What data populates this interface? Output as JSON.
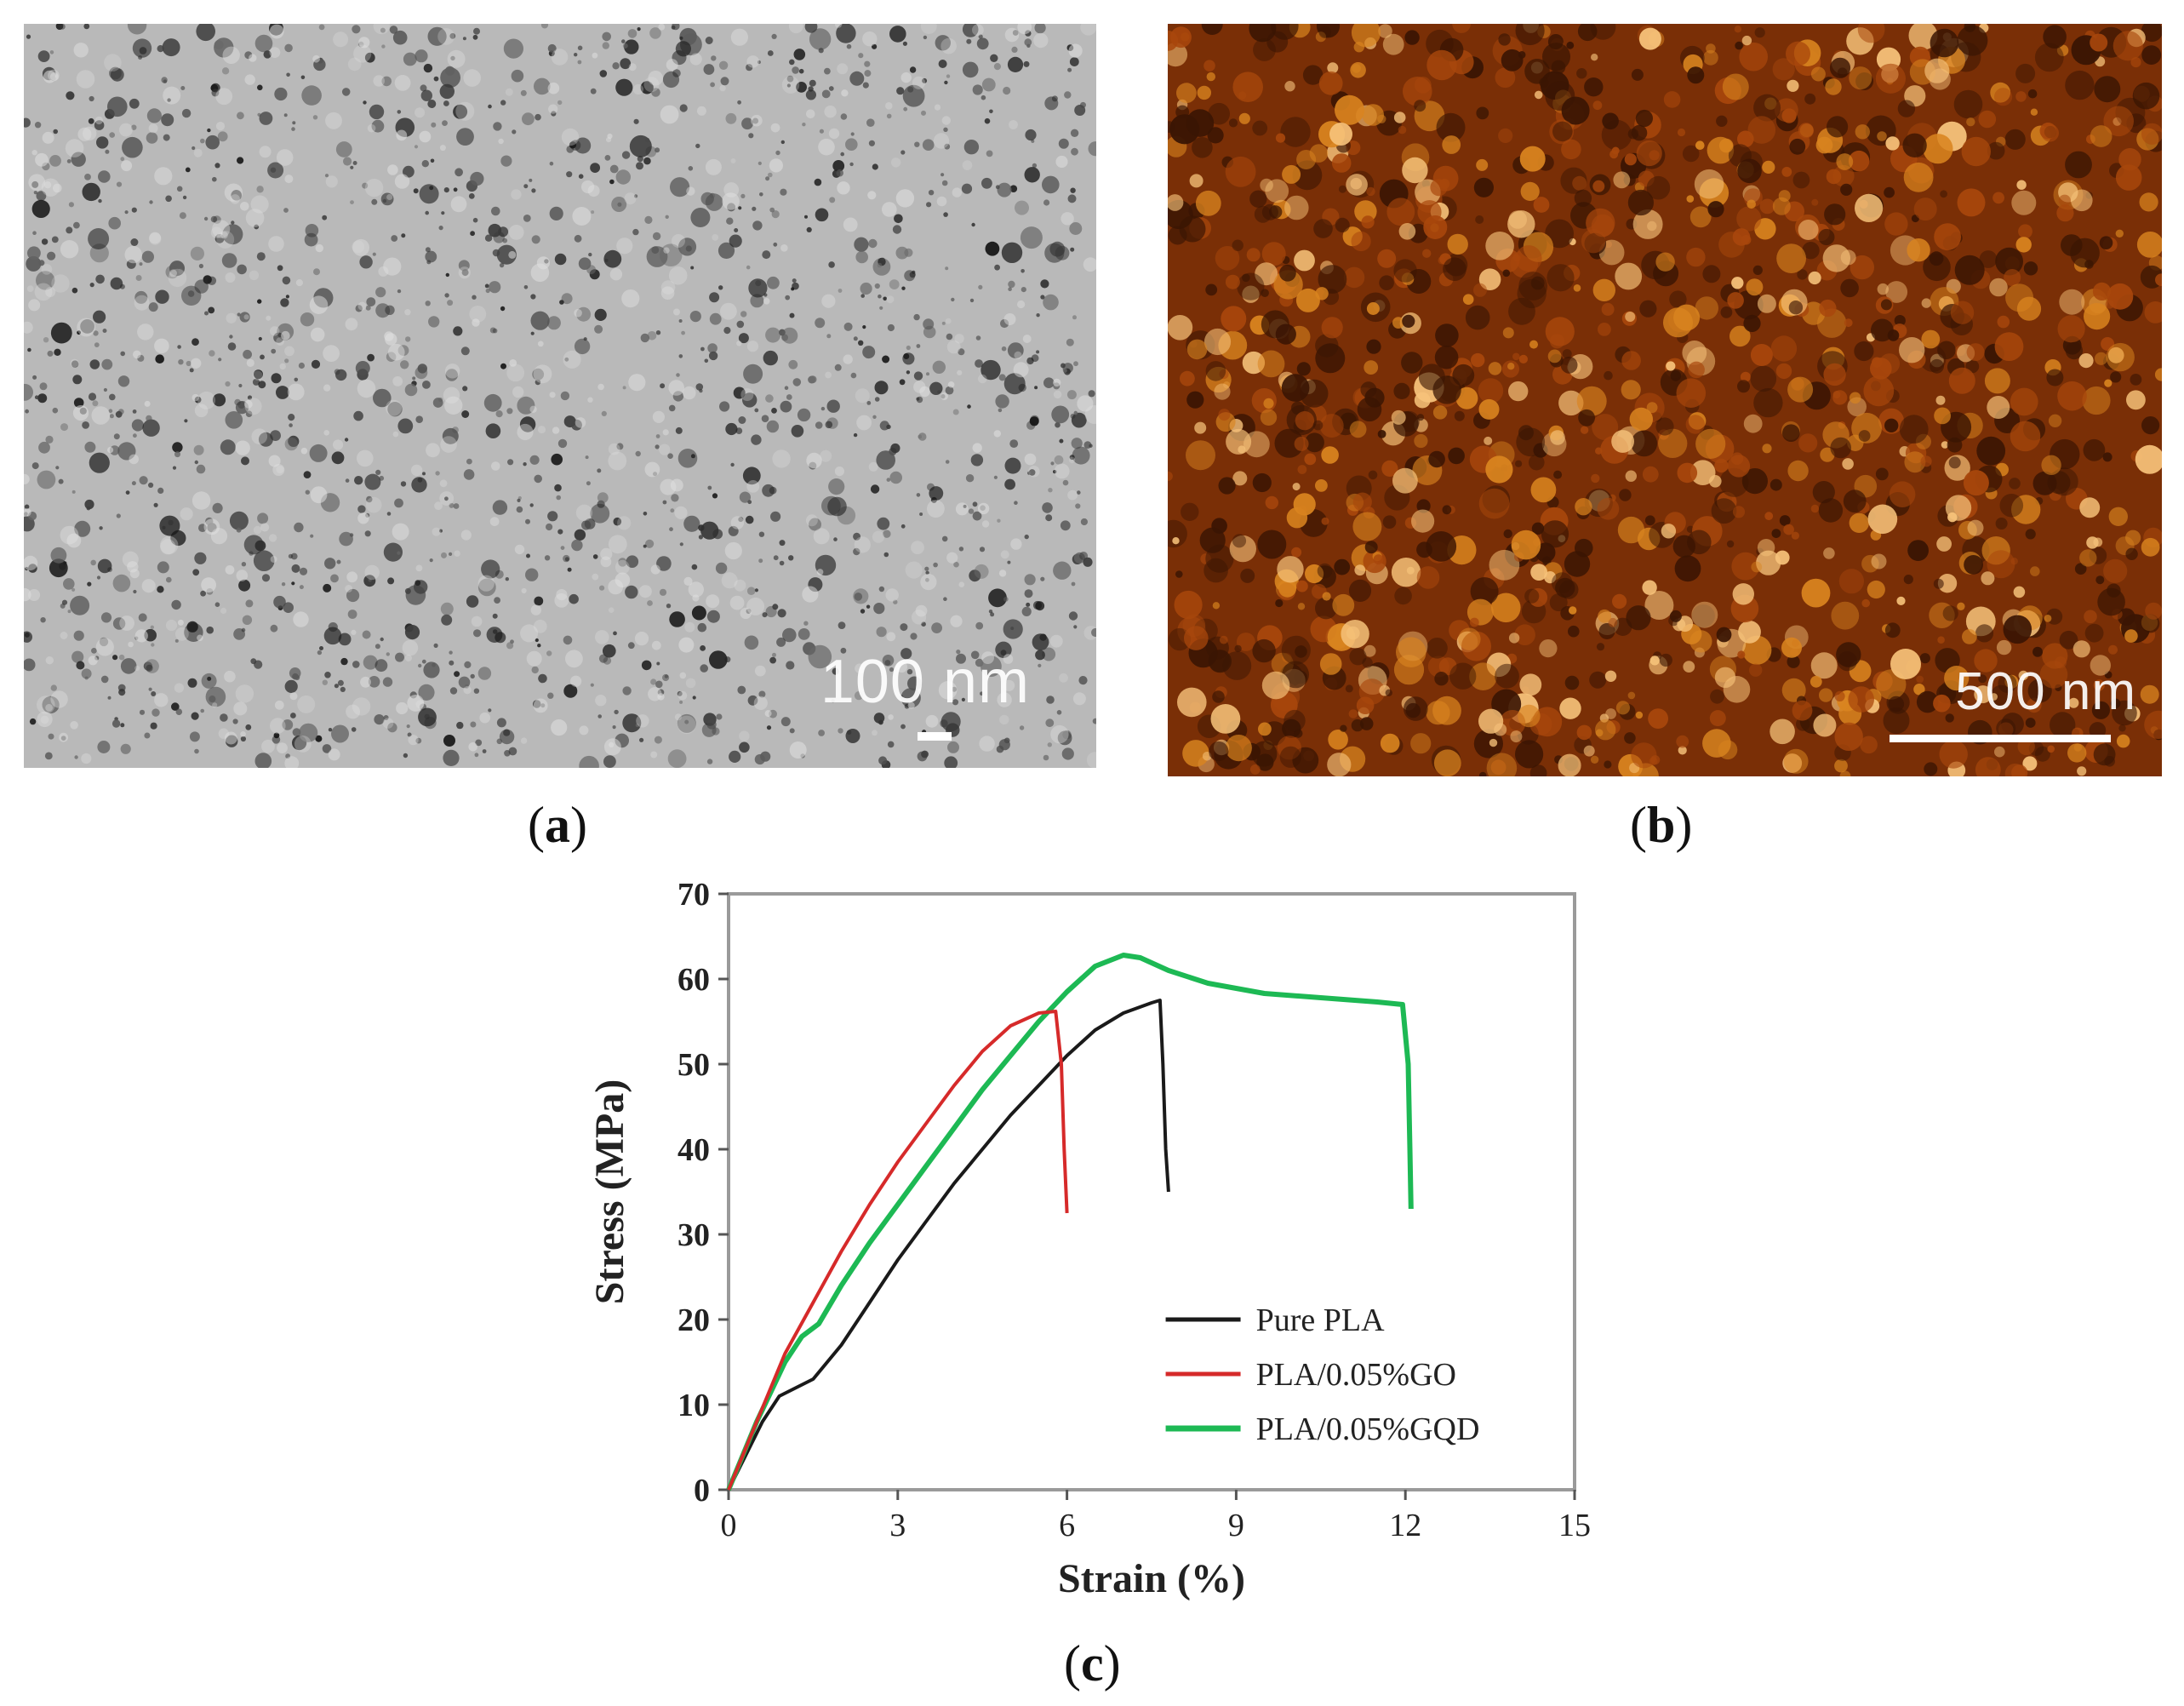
{
  "panels": {
    "a": {
      "caption_letter": "a",
      "scale_label": "100 nm",
      "palette": [
        "#b9b9b9",
        "#1c1c1c"
      ]
    },
    "b": {
      "caption_letter": "b",
      "scale_label": "500 nm",
      "palette": [
        "#7a2f06",
        "#f6c27a"
      ]
    },
    "c": {
      "caption_letter": "c"
    }
  },
  "chart_data": {
    "type": "line",
    "xlabel": "Strain (%)",
    "ylabel": "Stress (MPa)",
    "xlim": [
      0,
      15
    ],
    "ylim": [
      0,
      70
    ],
    "xticks": [
      0,
      3,
      6,
      9,
      12,
      15
    ],
    "yticks": [
      0,
      10,
      20,
      30,
      40,
      50,
      60,
      70
    ],
    "grid": false,
    "legend_position": "bottom-right",
    "series": [
      {
        "name": "Pure PLA",
        "color": "#1a1a1a",
        "points": [
          [
            0,
            0
          ],
          [
            0.3,
            4
          ],
          [
            0.6,
            8
          ],
          [
            0.9,
            11
          ],
          [
            1.2,
            12
          ],
          [
            1.5,
            13
          ],
          [
            2,
            17
          ],
          [
            2.5,
            22
          ],
          [
            3,
            27
          ],
          [
            3.5,
            31.5
          ],
          [
            4,
            36
          ],
          [
            4.5,
            40
          ],
          [
            5,
            44
          ],
          [
            5.5,
            47.5
          ],
          [
            6,
            51
          ],
          [
            6.5,
            54
          ],
          [
            7,
            56
          ],
          [
            7.5,
            57.2
          ],
          [
            7.65,
            57.5
          ],
          [
            7.7,
            50
          ],
          [
            7.75,
            40
          ],
          [
            7.8,
            35
          ]
        ]
      },
      {
        "name": "PLA/0.05%GO",
        "color": "#d62a2a",
        "points": [
          [
            0,
            0
          ],
          [
            0.5,
            8
          ],
          [
            1,
            16
          ],
          [
            1.5,
            22
          ],
          [
            2,
            28
          ],
          [
            2.5,
            33.5
          ],
          [
            3,
            38.5
          ],
          [
            3.5,
            43
          ],
          [
            4,
            47.5
          ],
          [
            4.5,
            51.5
          ],
          [
            5,
            54.5
          ],
          [
            5.5,
            56
          ],
          [
            5.8,
            56.2
          ],
          [
            5.9,
            50
          ],
          [
            5.95,
            40
          ],
          [
            6,
            32.5
          ]
        ]
      },
      {
        "name": "PLA/0.05%GQD",
        "color": "#1db954",
        "points": [
          [
            0,
            0
          ],
          [
            0.5,
            8
          ],
          [
            1,
            15
          ],
          [
            1.3,
            18
          ],
          [
            1.6,
            19.5
          ],
          [
            2,
            24
          ],
          [
            2.5,
            29
          ],
          [
            3,
            33.5
          ],
          [
            3.5,
            38
          ],
          [
            4,
            42.5
          ],
          [
            4.5,
            47
          ],
          [
            5,
            51
          ],
          [
            5.5,
            55
          ],
          [
            6,
            58.5
          ],
          [
            6.5,
            61.5
          ],
          [
            7,
            62.8
          ],
          [
            7.3,
            62.5
          ],
          [
            7.8,
            61
          ],
          [
            8.5,
            59.5
          ],
          [
            9.5,
            58.3
          ],
          [
            10.5,
            57.8
          ],
          [
            11.5,
            57.3
          ],
          [
            11.95,
            57
          ],
          [
            12.05,
            50
          ],
          [
            12.08,
            40
          ],
          [
            12.1,
            33
          ]
        ]
      }
    ]
  }
}
